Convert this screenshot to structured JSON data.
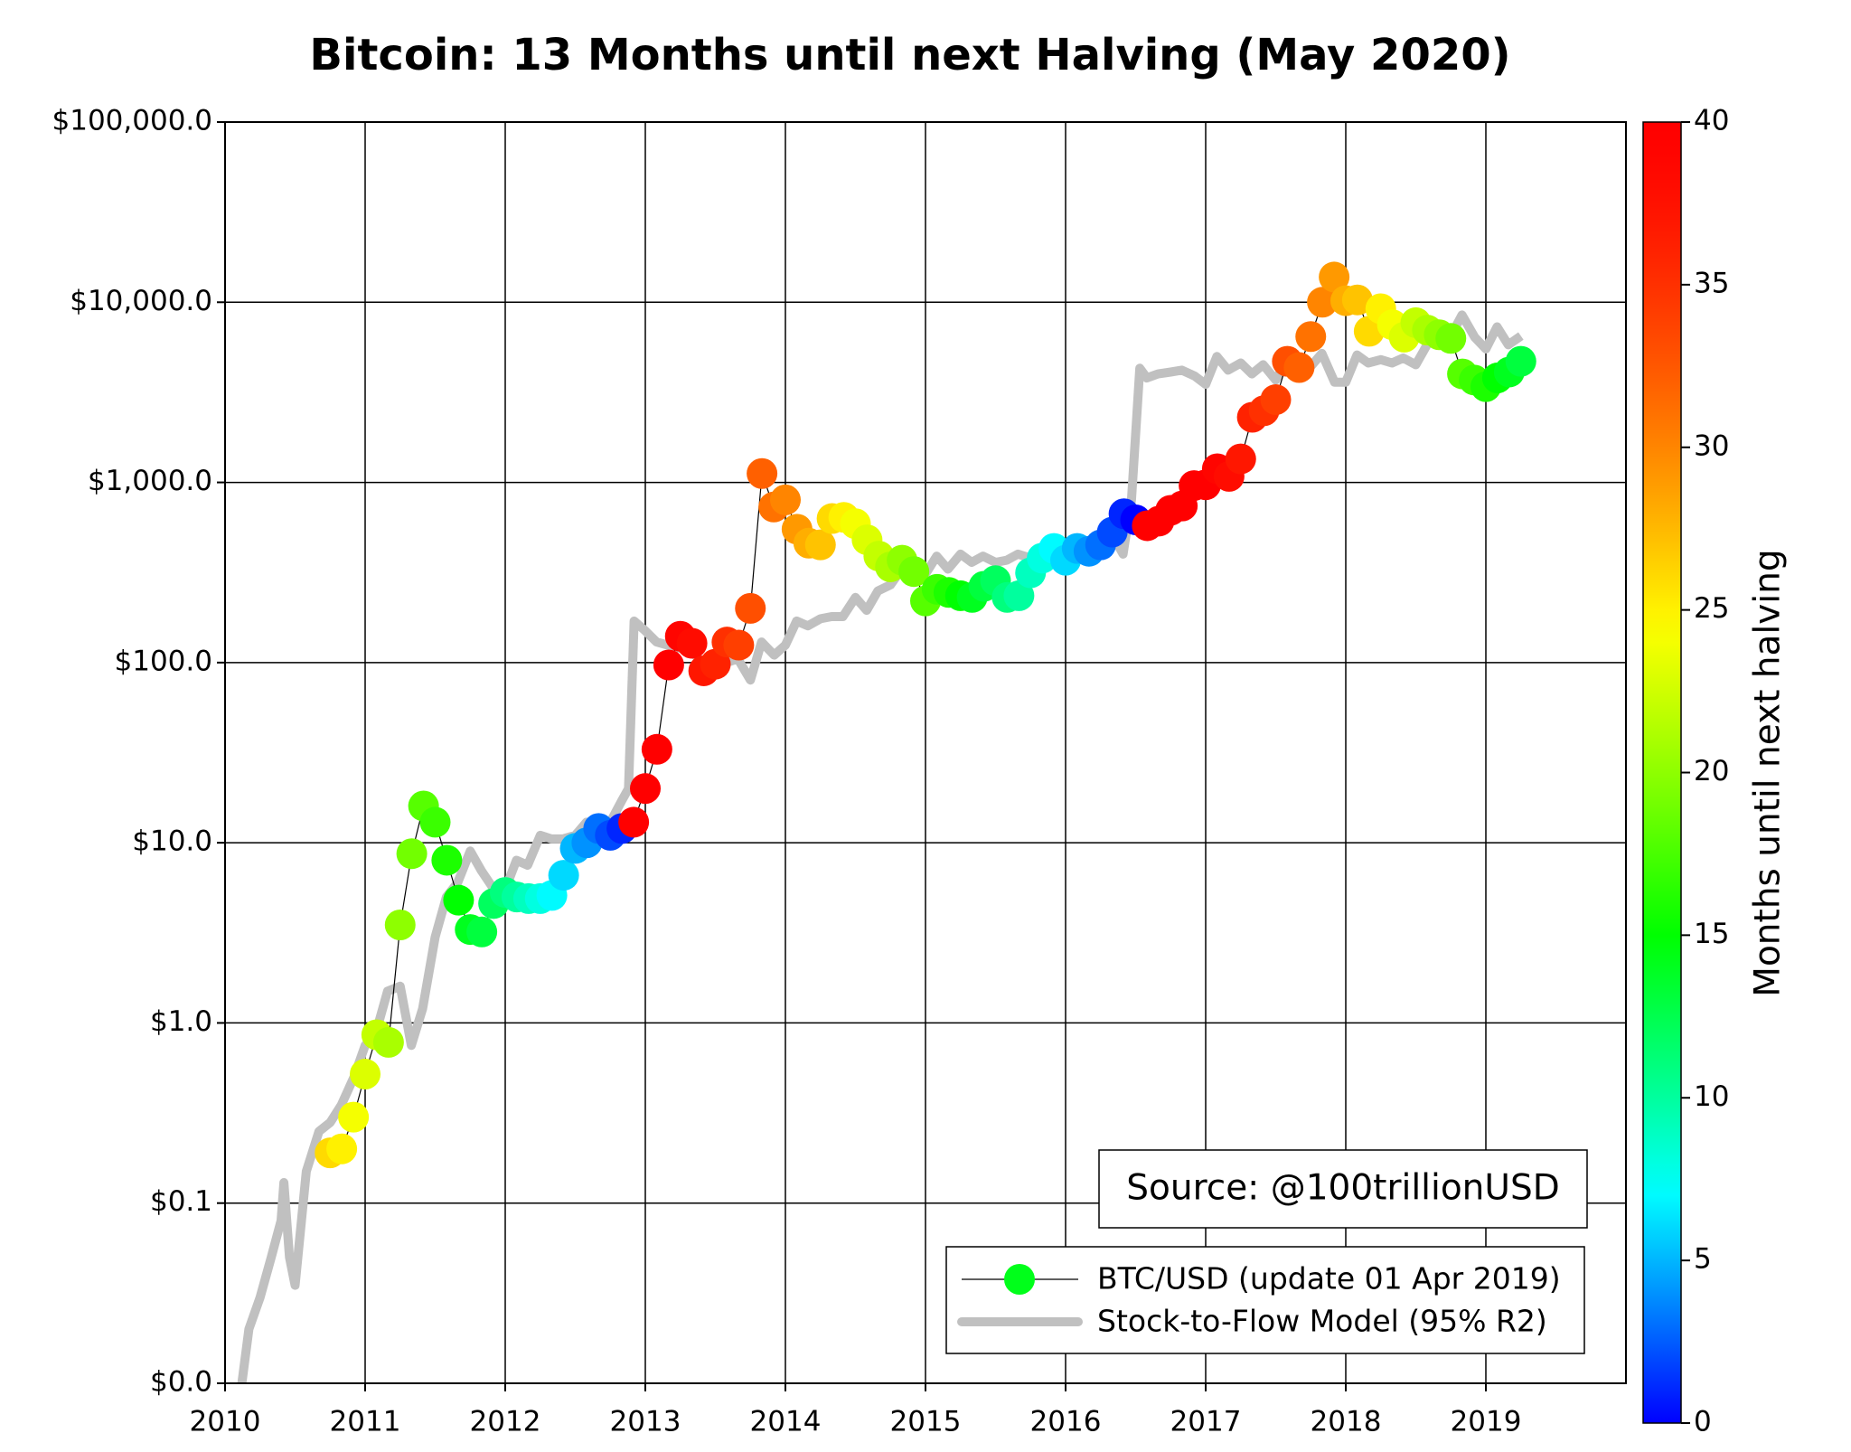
{
  "chart_data": {
    "type": "scatter",
    "title": "Bitcoin: 13 Months until next Halving (May 2020)",
    "annotation": "Source: @100trillionUSD",
    "yscale": "log",
    "grid": true,
    "xlim": [
      2010,
      2020
    ],
    "xticks": [
      2010,
      2011,
      2012,
      2013,
      2014,
      2015,
      2016,
      2017,
      2018,
      2019
    ],
    "ylim": [
      0.01,
      100000
    ],
    "yticks": [
      {
        "value": 0.01,
        "label": "$0.0"
      },
      {
        "value": 0.1,
        "label": "$0.1"
      },
      {
        "value": 1,
        "label": "$1.0"
      },
      {
        "value": 10,
        "label": "$10.0"
      },
      {
        "value": 100,
        "label": "$100.0"
      },
      {
        "value": 1000,
        "label": "$1,000.0"
      },
      {
        "value": 10000,
        "label": "$10,000.0"
      },
      {
        "value": 100000,
        "label": "$100,000.0"
      }
    ],
    "colorbar": {
      "label": "Months until next halving",
      "lim": [
        0,
        40
      ],
      "ticks": [
        0,
        5,
        10,
        15,
        20,
        25,
        30,
        35,
        40
      ]
    },
    "series": [
      {
        "name": "BTC/USD (update 01 Apr 2019)",
        "color": "#000000",
        "marker_color": "#00ff1a",
        "x": [
          2010.75,
          2010.833,
          2010.917,
          2011,
          2011.083,
          2011.167,
          2011.25,
          2011.333,
          2011.417,
          2011.5,
          2011.583,
          2011.667,
          2011.75,
          2011.833,
          2011.917,
          2012,
          2012.083,
          2012.167,
          2012.25,
          2012.333,
          2012.417,
          2012.5,
          2012.583,
          2012.667,
          2012.75,
          2012.833,
          2012.917,
          2013,
          2013.083,
          2013.167,
          2013.25,
          2013.333,
          2013.417,
          2013.5,
          2013.583,
          2013.667,
          2013.75,
          2013.833,
          2013.917,
          2014,
          2014.083,
          2014.167,
          2014.25,
          2014.333,
          2014.417,
          2014.5,
          2014.583,
          2014.667,
          2014.75,
          2014.833,
          2014.917,
          2015,
          2015.083,
          2015.167,
          2015.25,
          2015.333,
          2015.417,
          2015.5,
          2015.583,
          2015.667,
          2015.75,
          2015.833,
          2015.917,
          2016,
          2016.083,
          2016.167,
          2016.25,
          2016.333,
          2016.417,
          2016.5,
          2016.583,
          2016.667,
          2016.75,
          2016.833,
          2016.917,
          2017,
          2017.083,
          2017.167,
          2017.25,
          2017.333,
          2017.417,
          2017.5,
          2017.583,
          2017.667,
          2017.75,
          2017.833,
          2017.917,
          2018,
          2018.083,
          2018.167,
          2018.25,
          2018.333,
          2018.417,
          2018.5,
          2018.583,
          2018.667,
          2018.75,
          2018.833,
          2018.917,
          2019,
          2019.083,
          2019.167,
          2019.25
        ],
        "values": [
          0.19,
          0.2,
          0.3,
          0.52,
          0.86,
          0.78,
          3.5,
          8.7,
          16,
          13,
          8,
          4.8,
          3.3,
          3.2,
          4.6,
          5.3,
          5,
          4.9,
          4.9,
          5.1,
          6.6,
          9.3,
          10,
          12,
          11,
          12,
          13,
          20,
          33,
          97,
          140,
          128,
          90,
          98,
          130,
          125,
          200,
          1120,
          730,
          800,
          550,
          460,
          450,
          630,
          640,
          590,
          480,
          390,
          340,
          370,
          320,
          220,
          255,
          245,
          235,
          230,
          265,
          285,
          230,
          235,
          315,
          380,
          430,
          370,
          430,
          415,
          450,
          530,
          670,
          620,
          575,
          610,
          700,
          740,
          960,
          970,
          1190,
          1080,
          1350,
          2300,
          2500,
          2880,
          4700,
          4340,
          6450,
          10000,
          13800,
          10200,
          10300,
          6900,
          9200,
          7500,
          6400,
          7700,
          7000,
          6600,
          6300,
          4000,
          3700,
          3400,
          3800,
          4100,
          4700
        ],
        "months": [
          26,
          25,
          24,
          23,
          22,
          21,
          20,
          19,
          18,
          17,
          16,
          15,
          14,
          13,
          12,
          11,
          10,
          9,
          8,
          7,
          6,
          5,
          4,
          3,
          2,
          1,
          43,
          42,
          41,
          40,
          39,
          38,
          37,
          36,
          35,
          34,
          33,
          32,
          31,
          30,
          29,
          28,
          27,
          26,
          25,
          24,
          23,
          22,
          21,
          20,
          19,
          18,
          17,
          16,
          15,
          14,
          13,
          12,
          11,
          10,
          9,
          8,
          7,
          6,
          5,
          4,
          3,
          2,
          1,
          0,
          45,
          44,
          43,
          42,
          41,
          40,
          39,
          38,
          37,
          36,
          35,
          34,
          33,
          32,
          31,
          30,
          29,
          28,
          27,
          26,
          25,
          24,
          23,
          22,
          21,
          20,
          19,
          18,
          17,
          16,
          15,
          14,
          13
        ]
      },
      {
        "name": "Stock-to-Flow Model (95% R2)",
        "color": "#c0c0c0",
        "x": [
          2010.12,
          2010.17,
          2010.25,
          2010.33,
          2010.4,
          2010.42,
          2010.46,
          2010.5,
          2010.58,
          2010.67,
          2010.75,
          2010.83,
          2010.92,
          2011,
          2011.08,
          2011.16,
          2011.25,
          2011.33,
          2011.41,
          2011.5,
          2011.58,
          2011.66,
          2011.75,
          2011.83,
          2011.92,
          2012,
          2012.08,
          2012.16,
          2012.25,
          2012.33,
          2012.41,
          2012.5,
          2012.58,
          2012.66,
          2012.75,
          2012.83,
          2012.88,
          2012.92,
          2013,
          2013.08,
          2013.16,
          2013.25,
          2013.33,
          2013.41,
          2013.5,
          2013.58,
          2013.66,
          2013.75,
          2013.83,
          2013.92,
          2014,
          2014.08,
          2014.16,
          2014.25,
          2014.33,
          2014.41,
          2014.5,
          2014.58,
          2014.66,
          2014.75,
          2014.83,
          2014.92,
          2015,
          2015.08,
          2015.16,
          2015.25,
          2015.33,
          2015.41,
          2015.5,
          2015.58,
          2015.66,
          2015.75,
          2015.83,
          2015.92,
          2016,
          2016.08,
          2016.16,
          2016.25,
          2016.33,
          2016.41,
          2016.47,
          2016.53,
          2016.58,
          2016.66,
          2016.75,
          2016.83,
          2016.92,
          2017,
          2017.08,
          2017.16,
          2017.25,
          2017.33,
          2017.41,
          2017.5,
          2017.58,
          2017.66,
          2017.75,
          2017.83,
          2017.92,
          2018,
          2018.08,
          2018.16,
          2018.25,
          2018.33,
          2018.41,
          2018.5,
          2018.58,
          2018.66,
          2018.75,
          2018.83,
          2018.92,
          2019,
          2019.08,
          2019.16,
          2019.25
        ],
        "values": [
          0.01,
          0.02,
          0.03,
          0.05,
          0.08,
          0.13,
          0.05,
          0.035,
          0.15,
          0.25,
          0.28,
          0.35,
          0.5,
          0.75,
          0.9,
          1.5,
          1.6,
          0.75,
          1.2,
          3,
          5,
          6,
          9,
          7,
          5.5,
          5.5,
          8,
          7.5,
          11,
          10.5,
          10.5,
          11,
          13,
          11,
          13,
          17,
          20,
          170,
          150,
          130,
          125,
          120,
          115,
          100,
          95,
          100,
          105,
          80,
          130,
          110,
          125,
          170,
          160,
          175,
          180,
          180,
          230,
          195,
          250,
          270,
          330,
          310,
          310,
          390,
          330,
          400,
          360,
          390,
          360,
          370,
          400,
          380,
          360,
          410,
          450,
          420,
          450,
          490,
          520,
          400,
          800,
          4300,
          3800,
          4000,
          4100,
          4200,
          3900,
          3500,
          5000,
          4200,
          4600,
          4000,
          4500,
          3700,
          4800,
          4700,
          4400,
          5200,
          3600,
          3600,
          5100,
          4600,
          4800,
          4600,
          4900,
          4500,
          5800,
          6500,
          6500,
          8500,
          6400,
          5500,
          7300,
          5800,
          6500
        ]
      }
    ]
  }
}
